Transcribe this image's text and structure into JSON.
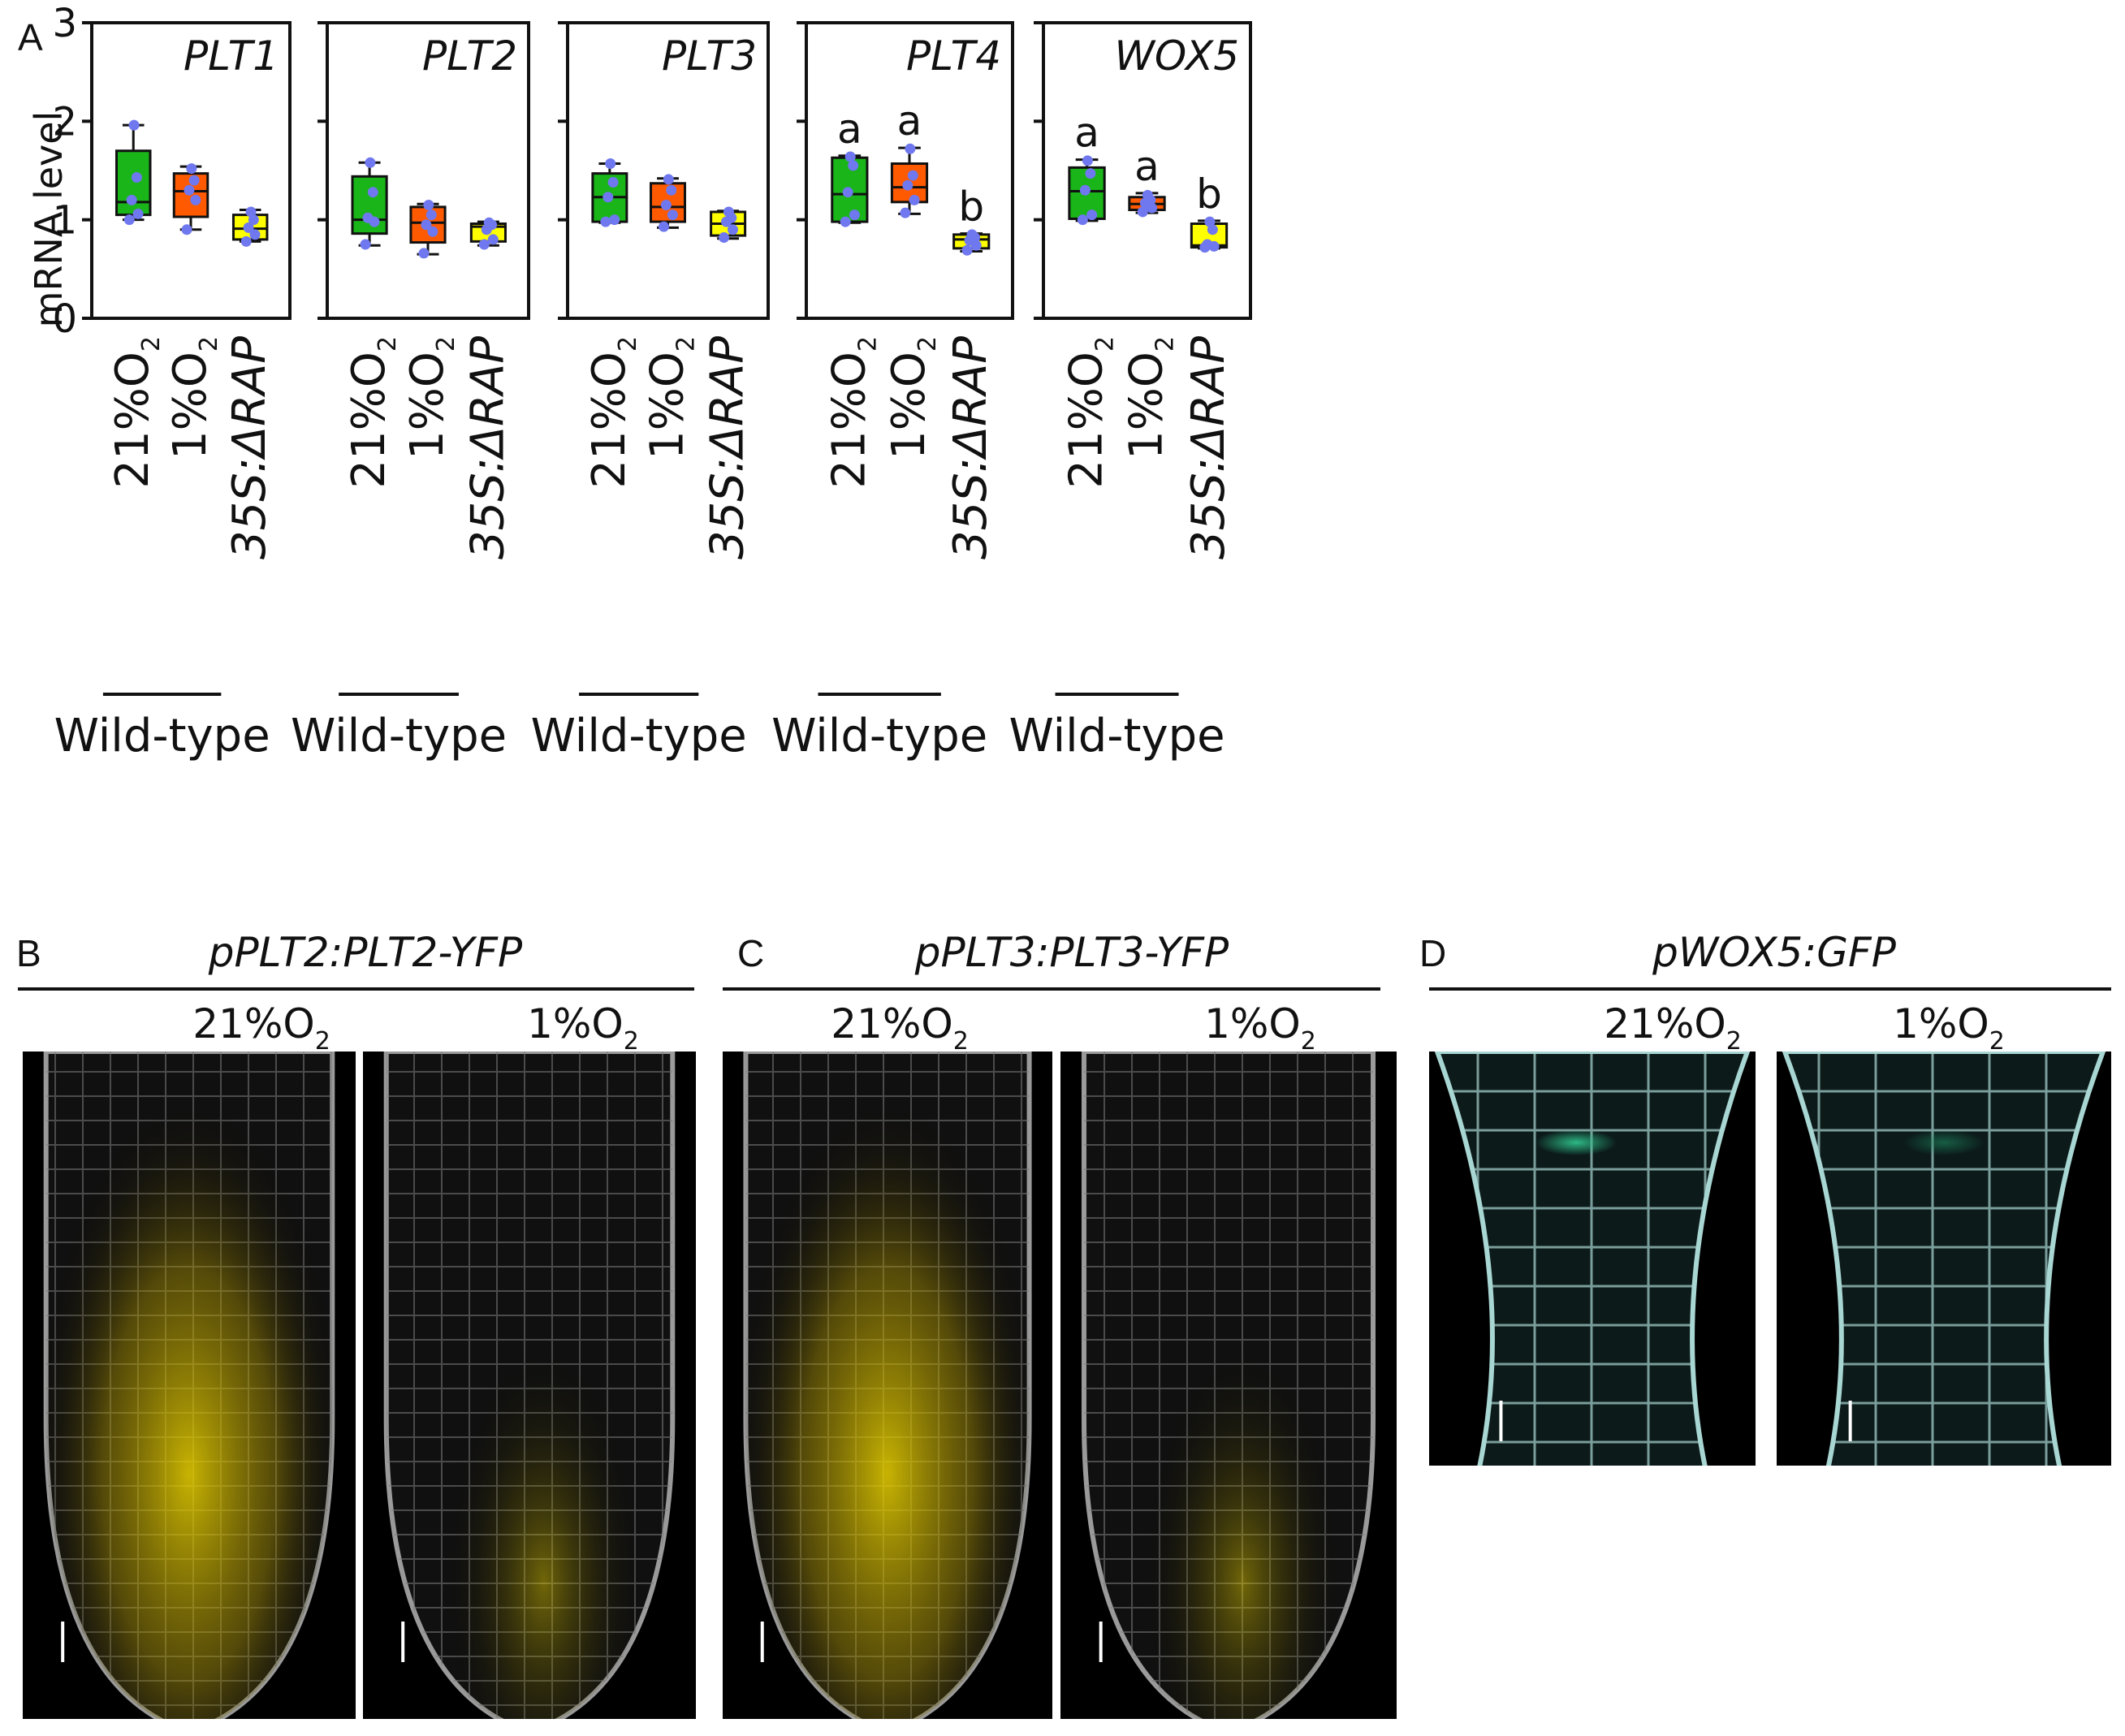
{
  "colors": {
    "wt21": "#19b519",
    "wt1": "#ff5a00",
    "rap": "#ffff00",
    "points": "#6f78ee",
    "yfp": "#e8d000",
    "gfp": "#2fc08a",
    "tissue": "#9a9a9a",
    "tissue_gfp": "#a8d6d2"
  },
  "chart_data": {
    "type": "box",
    "panel_label": "A",
    "ylabel": "mRNA level",
    "ylim": [
      0,
      3
    ],
    "yticks": [
      0,
      1,
      2,
      3
    ],
    "ytick_labels": [
      "0",
      "1",
      "2",
      "3"
    ],
    "categories": [
      "21%O2",
      "1%O2",
      "35S:ΔRAP"
    ],
    "category_labels": [
      {
        "main": "21%O",
        "sub": "2",
        "italic": false
      },
      {
        "main": "1%O",
        "sub": "2",
        "italic": false
      },
      {
        "main": "35S:ΔRAP",
        "sub": "",
        "italic": true
      }
    ],
    "group_label": "Wild-type",
    "panels": [
      {
        "gene": "PLT1",
        "boxes": [
          {
            "whisker_low": 1.0,
            "q1": 1.05,
            "median": 1.18,
            "q3": 1.7,
            "whisker_high": 1.96,
            "points": [
              1.0,
              1.06,
              1.2,
              1.43,
              1.96
            ]
          },
          {
            "whisker_low": 0.9,
            "q1": 1.03,
            "median": 1.29,
            "q3": 1.47,
            "whisker_high": 1.54,
            "points": [
              0.9,
              1.2,
              1.3,
              1.4,
              1.52
            ]
          },
          {
            "whisker_low": 0.78,
            "q1": 0.8,
            "median": 0.91,
            "q3": 1.05,
            "whisker_high": 1.1,
            "points": [
              0.78,
              0.85,
              0.92,
              1.0,
              1.08
            ]
          }
        ],
        "letters": []
      },
      {
        "gene": "PLT2",
        "boxes": [
          {
            "whisker_low": 0.74,
            "q1": 0.86,
            "median": 1.0,
            "q3": 1.44,
            "whisker_high": 1.58,
            "points": [
              0.75,
              0.98,
              1.02,
              1.28,
              1.58
            ]
          },
          {
            "whisker_low": 0.65,
            "q1": 0.77,
            "median": 0.97,
            "q3": 1.13,
            "whisker_high": 1.16,
            "points": [
              0.66,
              0.88,
              0.95,
              1.05,
              1.15
            ]
          },
          {
            "whisker_low": 0.74,
            "q1": 0.78,
            "median": 0.93,
            "q3": 0.96,
            "whisker_high": 0.98,
            "points": [
              0.75,
              0.8,
              0.9,
              0.95,
              0.97
            ]
          }
        ],
        "letters": []
      },
      {
        "gene": "PLT3",
        "boxes": [
          {
            "whisker_low": 0.97,
            "q1": 0.98,
            "median": 1.23,
            "q3": 1.47,
            "whisker_high": 1.57,
            "points": [
              0.98,
              1.0,
              1.23,
              1.38,
              1.57
            ]
          },
          {
            "whisker_low": 0.92,
            "q1": 0.98,
            "median": 1.13,
            "q3": 1.37,
            "whisker_high": 1.42,
            "points": [
              0.93,
              1.05,
              1.15,
              1.3,
              1.41
            ]
          },
          {
            "whisker_low": 0.81,
            "q1": 0.84,
            "median": 0.96,
            "q3": 1.08,
            "whisker_high": 1.09,
            "points": [
              0.82,
              0.9,
              0.98,
              1.02,
              1.08
            ]
          }
        ],
        "letters": []
      },
      {
        "gene": "PLT4",
        "boxes": [
          {
            "whisker_low": 0.97,
            "q1": 0.98,
            "median": 1.26,
            "q3": 1.63,
            "whisker_high": 1.65,
            "points": [
              0.98,
              1.05,
              1.28,
              1.55,
              1.64
            ]
          },
          {
            "whisker_low": 1.06,
            "q1": 1.18,
            "median": 1.33,
            "q3": 1.57,
            "whisker_high": 1.73,
            "points": [
              1.07,
              1.2,
              1.35,
              1.45,
              1.72
            ]
          },
          {
            "whisker_low": 0.68,
            "q1": 0.71,
            "median": 0.8,
            "q3": 0.85,
            "whisker_high": 0.86,
            "points": [
              0.69,
              0.74,
              0.79,
              0.82,
              0.85
            ]
          }
        ],
        "letters": [
          "a",
          "a",
          "b"
        ]
      },
      {
        "gene": "WOX5",
        "boxes": [
          {
            "whisker_low": 0.99,
            "q1": 1.01,
            "median": 1.29,
            "q3": 1.53,
            "whisker_high": 1.61,
            "points": [
              1.0,
              1.05,
              1.3,
              1.47,
              1.6
            ]
          },
          {
            "whisker_low": 1.07,
            "q1": 1.1,
            "median": 1.16,
            "q3": 1.23,
            "whisker_high": 1.27,
            "points": [
              1.08,
              1.12,
              1.17,
              1.2,
              1.25
            ]
          },
          {
            "whisker_low": 0.71,
            "q1": 0.72,
            "median": 0.74,
            "q3": 0.96,
            "whisker_high": 0.99,
            "points": [
              0.72,
              0.73,
              0.75,
              0.9,
              0.98
            ]
          }
        ],
        "letters": [
          "a",
          "a",
          "b"
        ]
      }
    ]
  },
  "microscopy": [
    {
      "panel_label": "B",
      "construct": "pPLT2:PLT2-YFP",
      "reporter": "yfp",
      "conditions": [
        {
          "main": "21%O",
          "sub": "2",
          "signal_strength": 0.9
        },
        {
          "main": "1%O",
          "sub": "2",
          "signal_strength": 0.35
        }
      ]
    },
    {
      "panel_label": "C",
      "construct": "pPLT3:PLT3-YFP",
      "reporter": "yfp",
      "conditions": [
        {
          "main": "21%O",
          "sub": "2",
          "signal_strength": 0.85
        },
        {
          "main": "1%O",
          "sub": "2",
          "signal_strength": 0.3
        }
      ]
    },
    {
      "panel_label": "D",
      "construct": "pWOX5:GFP",
      "reporter": "gfp",
      "conditions": [
        {
          "main": "21%O",
          "sub": "2",
          "signal_strength": 0.9
        },
        {
          "main": "1%O",
          "sub": "2",
          "signal_strength": 0.3
        }
      ]
    }
  ]
}
